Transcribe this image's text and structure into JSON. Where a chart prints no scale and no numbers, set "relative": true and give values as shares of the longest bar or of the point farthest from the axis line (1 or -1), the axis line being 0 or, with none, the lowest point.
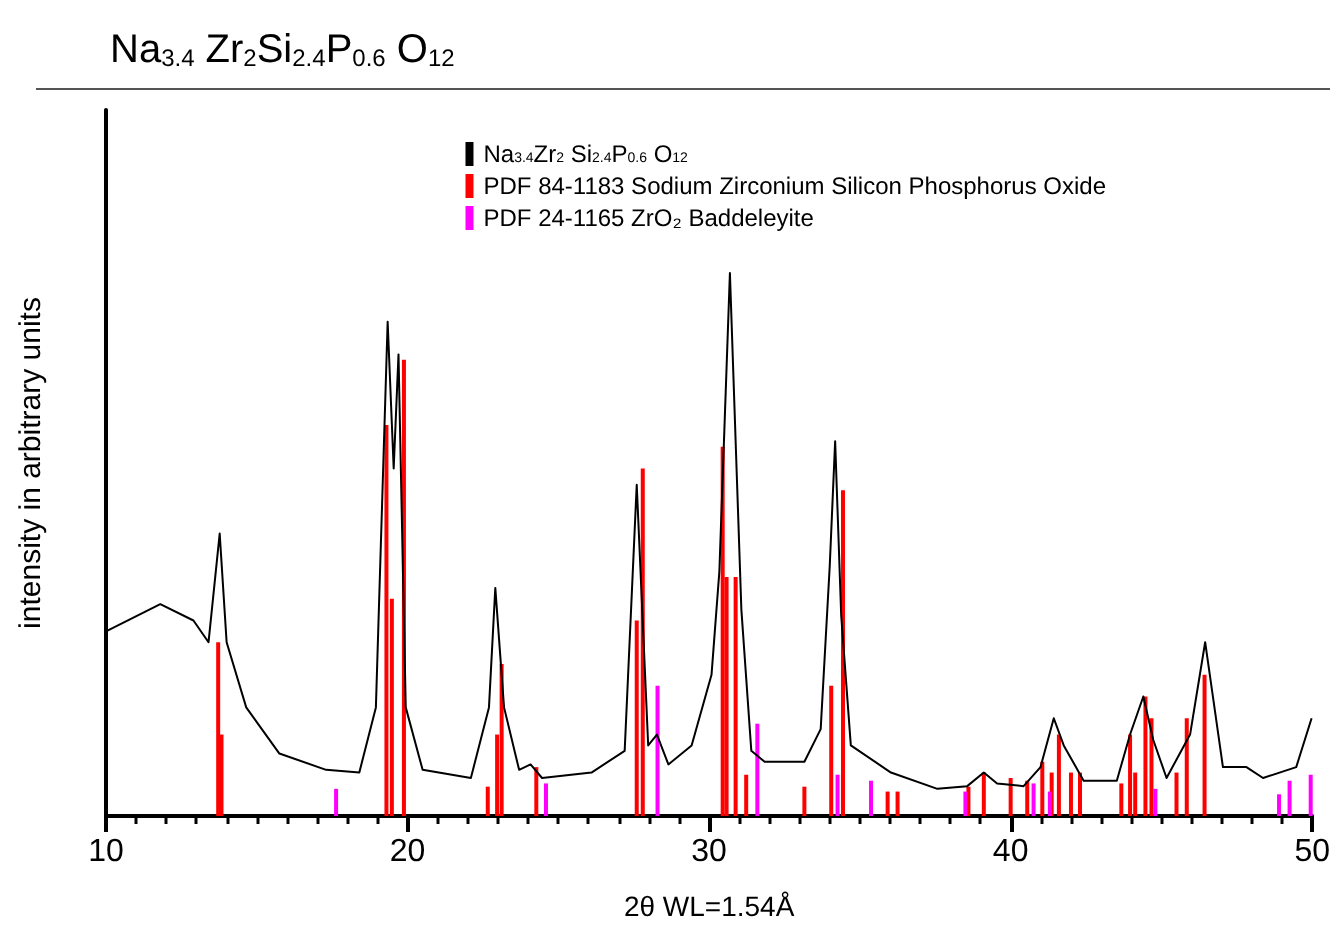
{
  "chart_data": {
    "type": "line",
    "title": "Na$_{3.4}$ Zr$_{2}$Si$_{2.4}$P$_{0.6}$ O$_{12}$",
    "xlabel": "2θ WL=1.54Å",
    "ylabel": "intensity in arbitrary units",
    "relative": true,
    "xlim": [
      10,
      50
    ],
    "xticks": [
      10,
      20,
      30,
      40,
      50
    ],
    "legend": "top right",
    "marker": "none",
    "grid": false,
    "series": [
      {
        "name": "Na$_{3.4}$Zr$_{2}$ Si$_{2.4}$P$_{0.6}$ O$_{12}$",
        "color": "#000000",
        "x": [
          10,
          11.8,
          12.9,
          13.4,
          13.77,
          14.0,
          14.65,
          15.75,
          17.3,
          18.4,
          18.95,
          19.34,
          19.54,
          19.7,
          19.94,
          20.5,
          22.1,
          22.7,
          22.91,
          23.2,
          23.7,
          24.08,
          24.46,
          26.1,
          27.2,
          27.6,
          27.98,
          28.27,
          28.65,
          29.42,
          30.08,
          30.34,
          30.69,
          31.07,
          31.4,
          31.84,
          33.16,
          33.7,
          34.0,
          34.18,
          34.38,
          34.7,
          36.03,
          37.57,
          38.56,
          39.11,
          39.55,
          40.43,
          40.99,
          41.43,
          41.76,
          42.42,
          43.52,
          43.96,
          44.4,
          44.73,
          45.17,
          45.95,
          46.45,
          47.04,
          47.82,
          48.37,
          49.47,
          49.98
        ],
        "values": [
          0.34,
          0.39,
          0.36,
          0.32,
          0.52,
          0.32,
          0.2,
          0.115,
          0.085,
          0.08,
          0.2,
          0.91,
          0.64,
          0.85,
          0.2,
          0.085,
          0.07,
          0.2,
          0.42,
          0.2,
          0.085,
          0.095,
          0.07,
          0.08,
          0.12,
          0.61,
          0.13,
          0.15,
          0.095,
          0.13,
          0.26,
          0.45,
          1.0,
          0.38,
          0.12,
          0.1,
          0.1,
          0.16,
          0.46,
          0.69,
          0.37,
          0.13,
          0.08,
          0.05,
          0.055,
          0.08,
          0.06,
          0.055,
          0.09,
          0.18,
          0.13,
          0.065,
          0.065,
          0.15,
          0.22,
          0.14,
          0.07,
          0.15,
          0.32,
          0.09,
          0.09,
          0.07,
          0.09,
          0.18
        ]
      },
      {
        "name": "PDF 84-1183 Sodium Zirconium Silicon Phosphorus Oxide",
        "type": "bar",
        "color": "#ff0000",
        "x": [
          13.72,
          13.83,
          19.3,
          19.48,
          19.88,
          22.66,
          22.97,
          23.12,
          24.27,
          27.6,
          27.8,
          30.45,
          30.58,
          30.88,
          31.23,
          33.16,
          34.05,
          34.44,
          35.92,
          36.25,
          38.6,
          39.11,
          40.0,
          40.55,
          41.05,
          41.36,
          41.6,
          42.0,
          42.3,
          43.67,
          43.96,
          44.13,
          44.47,
          44.67,
          45.5,
          45.84,
          46.43
        ],
        "values": [
          0.32,
          0.15,
          0.72,
          0.4,
          0.84,
          0.054,
          0.15,
          0.28,
          0.09,
          0.36,
          0.64,
          0.68,
          0.44,
          0.44,
          0.076,
          0.054,
          0.24,
          0.6,
          0.045,
          0.045,
          0.054,
          0.08,
          0.07,
          0.065,
          0.1,
          0.08,
          0.15,
          0.08,
          0.08,
          0.06,
          0.15,
          0.08,
          0.22,
          0.18,
          0.08,
          0.18,
          0.26
        ]
      },
      {
        "name": "PDF 24-1165 ZrO₂ Baddeleyite",
        "type": "bar",
        "color": "#ff00ff",
        "x": [
          17.63,
          24.59,
          28.29,
          31.6,
          34.26,
          35.37,
          38.5,
          40.76,
          41.3,
          44.8,
          48.9,
          49.25,
          49.95
        ],
        "values": [
          0.05,
          0.06,
          0.24,
          0.17,
          0.076,
          0.065,
          0.045,
          0.06,
          0.045,
          0.05,
          0.04,
          0.065,
          0.076
        ]
      }
    ]
  }
}
